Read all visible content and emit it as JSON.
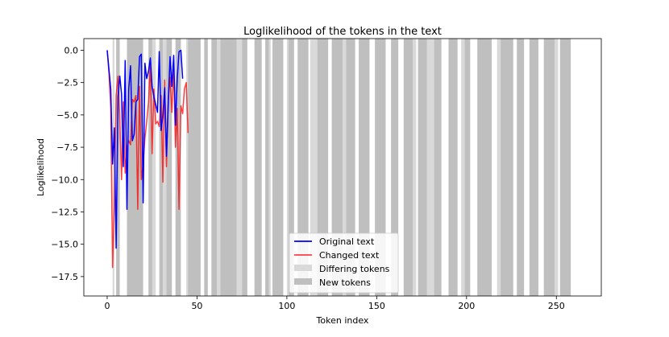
{
  "chart_data": {
    "type": "line",
    "title": "Loglikelihood of the tokens in the text",
    "xlabel": "Token index",
    "ylabel": "Loglikelihood",
    "xlim": [
      -13,
      275
    ],
    "ylim": [
      -19.0,
      0.9
    ],
    "x_ticks": [
      0,
      50,
      100,
      150,
      200,
      250
    ],
    "y_ticks": [
      0.0,
      -2.5,
      -5.0,
      -7.5,
      -10.0,
      -12.5,
      -15.0,
      -17.5
    ],
    "x_tick_labels": [
      "0",
      "50",
      "100",
      "150",
      "200",
      "250"
    ],
    "y_tick_labels": [
      "0.0",
      "−2.5",
      "−5.0",
      "−7.5",
      "−10.0",
      "−12.5",
      "−15.0",
      "−17.5"
    ],
    "legend_position": "bottom-center",
    "series": [
      {
        "name": "Original text",
        "color": "#0000ff",
        "x": [
          0,
          2,
          3,
          4,
          5,
          6,
          7,
          8,
          9,
          10,
          11,
          12,
          13,
          14,
          15,
          16,
          17,
          18,
          19,
          20,
          21,
          22,
          23,
          24,
          25,
          26,
          27,
          28,
          29,
          30,
          31,
          32,
          33,
          34,
          35,
          36,
          37,
          38,
          39,
          40,
          41,
          42
        ],
        "y": [
          0.0,
          -3.0,
          -8.8,
          -6.0,
          -15.3,
          -3.6,
          -2.0,
          -3.4,
          -9.0,
          -0.8,
          -12.3,
          -3.0,
          -1.2,
          -7.0,
          -6.5,
          -4.0,
          -3.8,
          -0.5,
          -0.3,
          -11.8,
          -1.0,
          -2.2,
          -1.6,
          -0.6,
          -2.8,
          -3.6,
          -4.2,
          -4.8,
          -0.1,
          -6.2,
          -5.0,
          -2.9,
          -8.2,
          -4.0,
          -0.5,
          -2.8,
          -0.4,
          -5.8,
          -2.2,
          -0.1,
          0.0,
          -2.2
        ]
      },
      {
        "name": "Changed text",
        "color": "#ff0000",
        "x": [
          0,
          1,
          2,
          3,
          4,
          5,
          6,
          7,
          8,
          9,
          10,
          11,
          12,
          13,
          14,
          15,
          16,
          17,
          18,
          19,
          20,
          21,
          22,
          23,
          24,
          25,
          26,
          27,
          28,
          29,
          30,
          31,
          32,
          33,
          34,
          35,
          36,
          37,
          38,
          39,
          40,
          41,
          42,
          43,
          44,
          45
        ],
        "y": [
          0.0,
          -1.8,
          -4.5,
          -16.8,
          -12.0,
          -3.5,
          -2.0,
          -5.2,
          -10.0,
          -4.0,
          -9.5,
          -7.5,
          -7.0,
          -7.3,
          -3.8,
          -4.0,
          -3.5,
          -12.3,
          -2.8,
          -10.0,
          -8.8,
          -6.8,
          -5.5,
          -4.0,
          -0.8,
          -8.0,
          -3.0,
          -5.7,
          -5.5,
          -5.9,
          -3.5,
          -10.2,
          -2.3,
          -9.0,
          -3.8,
          -2.1,
          -4.8,
          -1.5,
          -7.5,
          -4.5,
          -12.3,
          -4.3,
          -4.9,
          -3.0,
          -2.5,
          -6.4
        ]
      }
    ],
    "shading": [
      {
        "name": "Differing tokens",
        "color": "#d9d9d9",
        "x_ranges": [
          [
            3,
            4
          ],
          [
            11,
            18
          ],
          [
            23,
            27
          ],
          [
            31,
            34
          ],
          [
            44,
            48
          ],
          [
            60,
            63
          ],
          [
            72,
            75
          ],
          [
            82,
            85
          ],
          [
            88,
            91
          ],
          [
            100,
            103
          ],
          [
            113,
            118
          ],
          [
            130,
            133
          ],
          [
            143,
            146
          ],
          [
            158,
            162
          ],
          [
            168,
            172
          ],
          [
            178,
            183
          ],
          [
            197,
            202
          ],
          [
            217,
            221
          ],
          [
            236,
            240
          ],
          [
            248,
            251
          ]
        ]
      },
      {
        "name": "New tokens",
        "color": "#bfbfbf",
        "x_ranges": [
          [
            5,
            7
          ],
          [
            11,
            20
          ],
          [
            23,
            25
          ],
          [
            29,
            31
          ],
          [
            33,
            36
          ],
          [
            38,
            41
          ],
          [
            45,
            52
          ],
          [
            54,
            56
          ],
          [
            58,
            61
          ],
          [
            63,
            72
          ],
          [
            75,
            78
          ],
          [
            82,
            86
          ],
          [
            88,
            90
          ],
          [
            92,
            98
          ],
          [
            101,
            104
          ],
          [
            106,
            112
          ],
          [
            117,
            123
          ],
          [
            125,
            131
          ],
          [
            133,
            138
          ],
          [
            140,
            146
          ],
          [
            149,
            155
          ],
          [
            158,
            162
          ],
          [
            165,
            170
          ],
          [
            173,
            178
          ],
          [
            182,
            186
          ],
          [
            190,
            195
          ],
          [
            199,
            202
          ],
          [
            206,
            214
          ],
          [
            219,
            226
          ],
          [
            228,
            232
          ],
          [
            235,
            240
          ],
          [
            243,
            249
          ],
          [
            252,
            258
          ]
        ]
      }
    ]
  }
}
